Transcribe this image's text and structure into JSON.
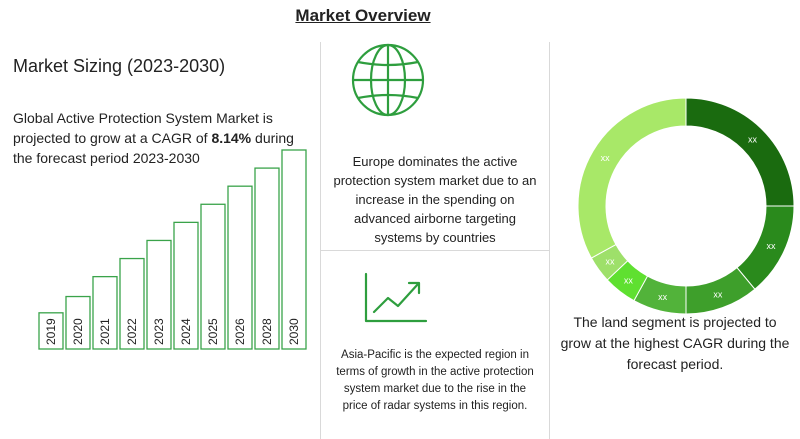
{
  "header": {
    "title": "Market Overview"
  },
  "sizing": {
    "title": "Market Sizing (2023-2030)",
    "text_pre": "Global Active Protection System Market is projected to grow at a CAGR of ",
    "cagr": "8.14%",
    "text_post": " during the forecast period 2023-2030"
  },
  "europe": {
    "text": "Europe dominates the active protection system market due to an increase in the spending on advanced airborne targeting systems by countries"
  },
  "apac": {
    "text": "Asia-Pacific is the expected region in terms of growth in the active protection system market due to the rise in the price of radar systems in this region."
  },
  "land": {
    "text": "The land segment is projected to grow at the highest CAGR during the forecast period."
  },
  "icons": {
    "globe": "globe-icon",
    "growth": "growth-chart-icon"
  },
  "colors": {
    "accent": "#2e9e3e",
    "bar_border": "#3aa34a"
  },
  "chart_data": [
    {
      "type": "bar",
      "categories": [
        "2019",
        "2020",
        "2021",
        "2022",
        "2023",
        "2024",
        "2025",
        "2026",
        "2028",
        "2030"
      ],
      "values": [
        1,
        1.45,
        2,
        2.5,
        3,
        3.5,
        4,
        4.5,
        5,
        5.5
      ],
      "value_labels": false,
      "colors": {
        "fill": "#ffffff",
        "border": "#3aa34a"
      }
    },
    {
      "type": "pie",
      "variant": "donut",
      "segments": [
        {
          "label": "xx",
          "value": 25,
          "color": "#1a6b0f"
        },
        {
          "label": "xx",
          "value": 14,
          "color": "#2a8a1c"
        },
        {
          "label": "xx",
          "value": 11,
          "color": "#3e9f2b"
        },
        {
          "label": "xx",
          "value": 8,
          "color": "#52b33a"
        },
        {
          "label": "xx",
          "value": 5,
          "color": "#5fe030"
        },
        {
          "label": "xx",
          "value": 4,
          "color": "#9ee06a"
        },
        {
          "label": "xx",
          "value": 33,
          "color": "#a8e868"
        }
      ]
    }
  ]
}
